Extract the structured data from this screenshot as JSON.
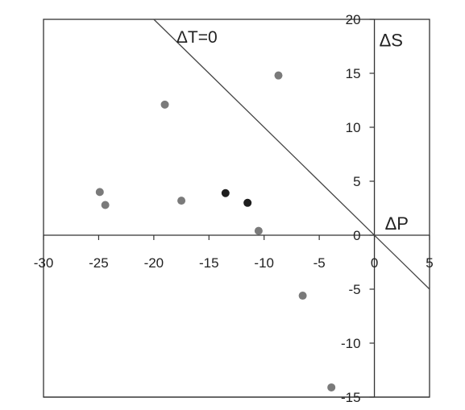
{
  "chart_data": {
    "type": "scatter",
    "title": "",
    "xlabel": "ΔP",
    "ylabel": "ΔS",
    "xlim": [
      -30,
      5
    ],
    "ylim": [
      -15,
      20
    ],
    "xticks": [
      -30,
      -25,
      -20,
      -15,
      -10,
      -5,
      0,
      5
    ],
    "yticks": [
      -15,
      -10,
      -5,
      0,
      5,
      10,
      15,
      20
    ],
    "xtick_labels": [
      "-30",
      "-25",
      "-20",
      "-15",
      "-10",
      "-5",
      "0",
      "5"
    ],
    "ytick_labels": [
      "-15",
      "-10",
      "-5",
      "0",
      "5",
      "10",
      "15",
      "20"
    ],
    "grid": false,
    "legend": "none",
    "annotations": [
      {
        "text": "ΔT=0",
        "type": "line",
        "slope": -1,
        "intercept": 0
      }
    ],
    "series": [
      {
        "color": "#7a7a7a",
        "points": [
          {
            "x": -8.7,
            "y": 14.8
          },
          {
            "x": -19.0,
            "y": 12.1
          },
          {
            "x": -24.9,
            "y": 4.0
          },
          {
            "x": -24.4,
            "y": 2.8
          },
          {
            "x": -17.5,
            "y": 3.2
          },
          {
            "x": -10.5,
            "y": 0.4
          },
          {
            "x": -6.5,
            "y": -5.6
          },
          {
            "x": -3.9,
            "y": -14.1
          }
        ]
      },
      {
        "color": "#1e1e1e",
        "points": [
          {
            "x": -13.5,
            "y": 3.9
          },
          {
            "x": -11.5,
            "y": 3.0
          }
        ]
      }
    ]
  }
}
